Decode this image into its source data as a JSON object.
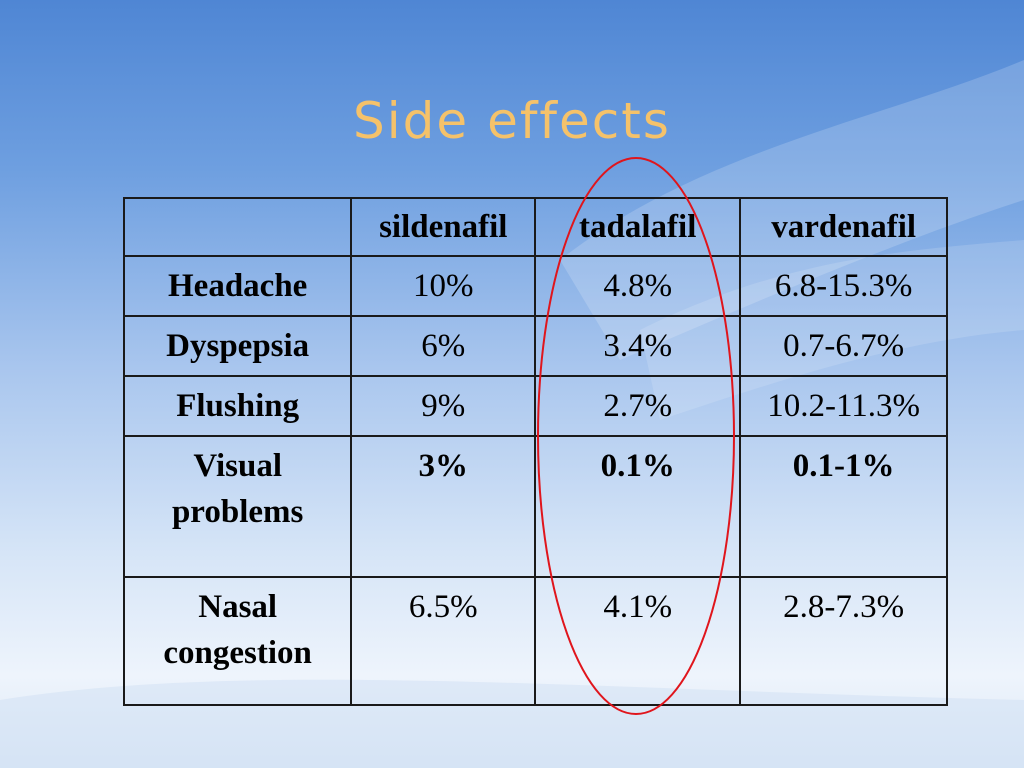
{
  "slide": {
    "title": "Side effects"
  },
  "table": {
    "columns": [
      "",
      "sildenafil",
      "tadalafil",
      "vardenafil"
    ],
    "rows": [
      {
        "label": [
          "Headache"
        ],
        "values": [
          "10%",
          "4.8%",
          "6.8-15.3%"
        ],
        "bold": false
      },
      {
        "label": [
          "Dyspepsia"
        ],
        "values": [
          "6%",
          "3.4%",
          "0.7-6.7%"
        ],
        "bold": false
      },
      {
        "label": [
          "Flushing"
        ],
        "values": [
          "9%",
          "2.7%",
          "10.2-11.3%"
        ],
        "bold": false
      },
      {
        "label": [
          "Visual",
          "problems"
        ],
        "values": [
          "3%",
          "0.1%",
          "0.1-1%"
        ],
        "bold": true
      },
      {
        "label": [
          "Nasal",
          "congestion"
        ],
        "values": [
          "6.5%",
          "4.1%",
          "2.8-7.3%"
        ],
        "bold": false
      }
    ]
  },
  "highlight": {
    "column": "tadalafil",
    "color": "#e0151c"
  },
  "colors": {
    "title": "#f5c26a",
    "background_top": "#4f86d4",
    "background_bottom": "#eef4fc"
  }
}
